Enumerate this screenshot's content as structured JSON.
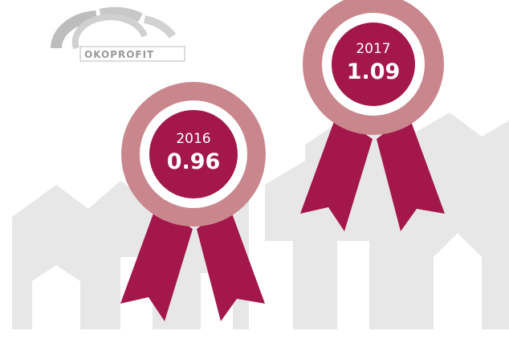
{
  "logo": {
    "text": "OKOPROFIT"
  },
  "awards": [
    {
      "year": "2016",
      "value": "0.96"
    },
    {
      "year": "2017",
      "value": "1.09"
    }
  ]
}
